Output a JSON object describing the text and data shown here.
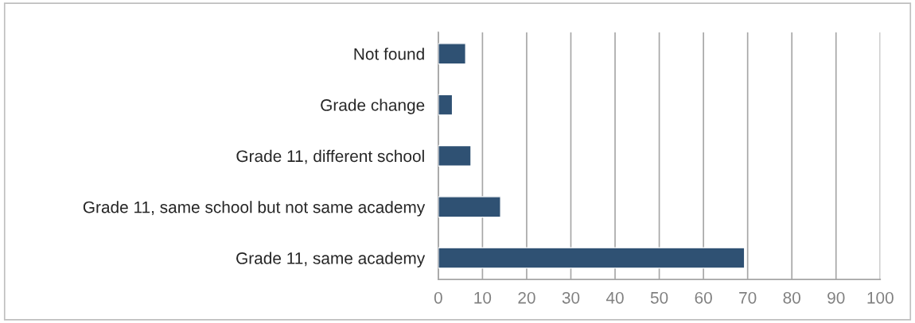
{
  "chart_data": {
    "type": "bar",
    "orientation": "horizontal",
    "categories": [
      "Not found",
      "Grade change",
      "Grade 11, different school",
      "Grade 11, same school but not same academy",
      "Grade 11, same academy"
    ],
    "values": [
      6.2,
      3.2,
      7.4,
      14.1,
      69.3
    ],
    "color": "#2f5173",
    "xlim": [
      0,
      100
    ],
    "xticks": [
      0,
      10,
      20,
      30,
      40,
      50,
      60,
      70,
      80,
      90,
      100
    ],
    "grid": "x"
  }
}
